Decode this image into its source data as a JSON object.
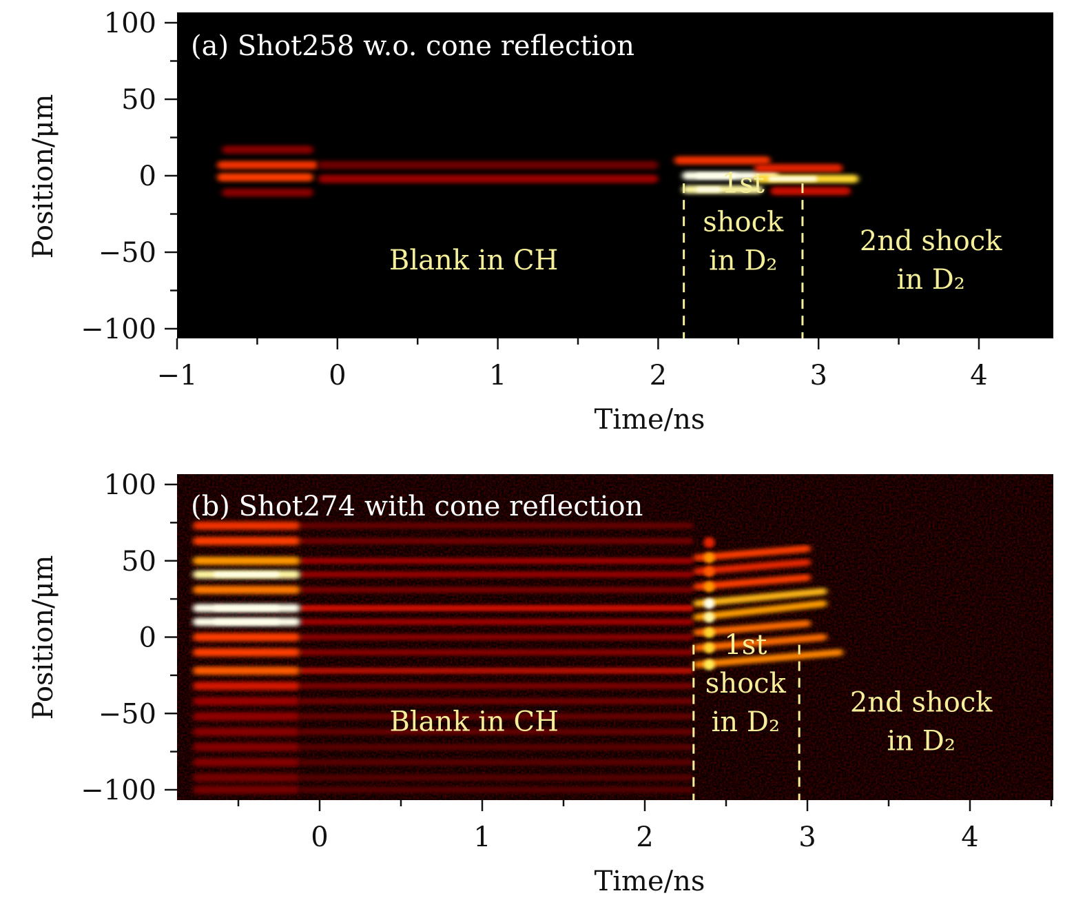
{
  "figure": {
    "panels": [
      "panel_a",
      "panel_b"
    ]
  },
  "colors": {
    "background": "#000000",
    "annotation": "#f5ef9a",
    "panel_title": "#ffffff",
    "colormap": [
      "#000000",
      "#5a0000",
      "#b00000",
      "#ff2a00",
      "#ff9a00",
      "#ffee40",
      "#ffffff"
    ]
  },
  "chart_data": [
    {
      "type": "heatmap",
      "id": "panel_a",
      "title": "(a) Shot258 w.o. cone reflection",
      "xlabel": "Time/ns",
      "ylabel": "Position/μm",
      "xlim": [
        -1,
        4.5
      ],
      "ylim": [
        -106,
        106
      ],
      "xticks": [
        -1,
        0,
        1,
        2,
        3,
        4
      ],
      "xtick_labels": [
        "−1",
        "0",
        "1",
        "2",
        "3",
        "4"
      ],
      "x_minor_ticks": [
        -0.5,
        0.5,
        1.5,
        2.5,
        3.5
      ],
      "yticks": [
        100,
        50,
        0,
        -50,
        -100
      ],
      "ytick_labels": [
        "100",
        "50",
        "0",
        "−50",
        "−100"
      ],
      "y_minor_ticks": [
        75,
        25,
        -25,
        -75
      ],
      "dashed_lines_x": [
        2.16,
        2.9
      ],
      "annotations": [
        {
          "id": "blank",
          "lines": [
            "Blank in CH"
          ],
          "x": 0.85,
          "y": -55
        },
        {
          "id": "first-shock",
          "lines": [
            "1st",
            "shock",
            "in D₂"
          ],
          "x": 2.53,
          "y": -30
        },
        {
          "id": "second-shock",
          "lines": [
            "2nd shock",
            "in D₂"
          ],
          "x": 3.7,
          "y": -55
        }
      ],
      "fringes": [
        {
          "t0": -0.72,
          "t1": -0.15,
          "y": 17,
          "intensity": 0.25
        },
        {
          "t0": -0.75,
          "t1": -0.12,
          "y": 7,
          "intensity": 0.55
        },
        {
          "t0": -0.75,
          "t1": -0.15,
          "y": -1,
          "intensity": 0.6
        },
        {
          "t0": -0.72,
          "t1": -0.15,
          "y": -11,
          "intensity": 0.25
        },
        {
          "t0": -0.12,
          "t1": 2.0,
          "y": 7,
          "intensity": 0.2
        },
        {
          "t0": -0.12,
          "t1": 2.0,
          "y": -2,
          "intensity": 0.3
        },
        {
          "t0": 2.1,
          "t1": 2.7,
          "y": 10,
          "intensity": 0.55
        },
        {
          "t0": 2.15,
          "t1": 2.75,
          "y": 0,
          "intensity": 1.0
        },
        {
          "t0": 2.15,
          "t1": 2.65,
          "y": -9,
          "intensity": 0.95
        },
        {
          "t0": 2.6,
          "t1": 3.15,
          "y": 5,
          "intensity": 0.5
        },
        {
          "t0": 2.6,
          "t1": 3.25,
          "y": -2,
          "intensity": 0.85
        },
        {
          "t0": 2.7,
          "t1": 3.2,
          "y": -10,
          "intensity": 0.4
        }
      ]
    },
    {
      "type": "heatmap",
      "id": "panel_b",
      "title": "(b) Shot274 with cone reflection",
      "xlabel": "Time/ns",
      "ylabel": "Position/μm",
      "xlim": [
        -0.88,
        4.5
      ],
      "ylim": [
        -106,
        106
      ],
      "xticks": [
        0,
        1,
        2,
        3,
        4
      ],
      "xtick_labels": [
        "0",
        "1",
        "2",
        "3",
        "4"
      ],
      "x_minor_ticks": [
        -0.5,
        0.5,
        1.5,
        2.5,
        3.5,
        4.5
      ],
      "yticks": [
        100,
        50,
        0,
        -50,
        -100
      ],
      "ytick_labels": [
        "100",
        "50",
        "0",
        "−50",
        "−100"
      ],
      "y_minor_ticks": [
        75,
        25,
        -25,
        -75
      ],
      "dashed_lines_x": [
        2.3,
        2.95
      ],
      "annotations": [
        {
          "id": "blank",
          "lines": [
            "Blank in CH"
          ],
          "x": 0.95,
          "y": -55
        },
        {
          "id": "first-shock",
          "lines": [
            "1st",
            "shock",
            "in D₂"
          ],
          "x": 2.62,
          "y": -30
        },
        {
          "id": "second-shock",
          "lines": [
            "2nd shock",
            "in D₂"
          ],
          "x": 3.7,
          "y": -55
        }
      ],
      "fringe_positions": [
        73,
        63,
        50,
        41,
        31,
        19,
        10,
        0,
        -10,
        -22,
        -32,
        -42,
        -52,
        -62,
        -72,
        -82,
        -92,
        -100
      ],
      "early_block": {
        "t0": -0.78,
        "t1": -0.12,
        "intensities": [
          0.55,
          0.6,
          0.75,
          0.95,
          0.7,
          1.0,
          1.0,
          0.6,
          0.6,
          0.65,
          0.45,
          0.3,
          0.28,
          0.26,
          0.25,
          0.25,
          0.22,
          0.22
        ]
      },
      "blank_region": {
        "t0": -0.12,
        "t1": 2.3,
        "intensities": [
          0.18,
          0.2,
          0.3,
          0.28,
          0.22,
          0.42,
          0.3,
          0.25,
          0.25,
          0.35,
          0.22,
          0.2,
          0.18,
          0.18,
          0.16,
          0.16,
          0.15,
          0.15
        ]
      },
      "shock_fringes": [
        {
          "t0": 2.32,
          "t1": 2.55,
          "y": 62,
          "intensity": 0.5,
          "slope": 0
        },
        {
          "t0": 2.32,
          "t1": 3.0,
          "y": 52,
          "intensity": 0.75,
          "slope": 6
        },
        {
          "t0": 2.32,
          "t1": 3.0,
          "y": 43,
          "intensity": 0.65,
          "slope": 6
        },
        {
          "t0": 2.32,
          "t1": 3.0,
          "y": 33,
          "intensity": 0.75,
          "slope": 6
        },
        {
          "t0": 2.32,
          "t1": 3.1,
          "y": 22,
          "intensity": 1.0,
          "slope": 8
        },
        {
          "t0": 2.32,
          "t1": 3.1,
          "y": 13,
          "intensity": 0.95,
          "slope": 9
        },
        {
          "t0": 2.32,
          "t1": 3.0,
          "y": 3,
          "intensity": 0.85,
          "slope": 6
        },
        {
          "t0": 2.32,
          "t1": 3.1,
          "y": -7,
          "intensity": 0.85,
          "slope": 7
        },
        {
          "t0": 2.32,
          "t1": 3.2,
          "y": -18,
          "intensity": 0.9,
          "slope": 8
        }
      ]
    }
  ]
}
